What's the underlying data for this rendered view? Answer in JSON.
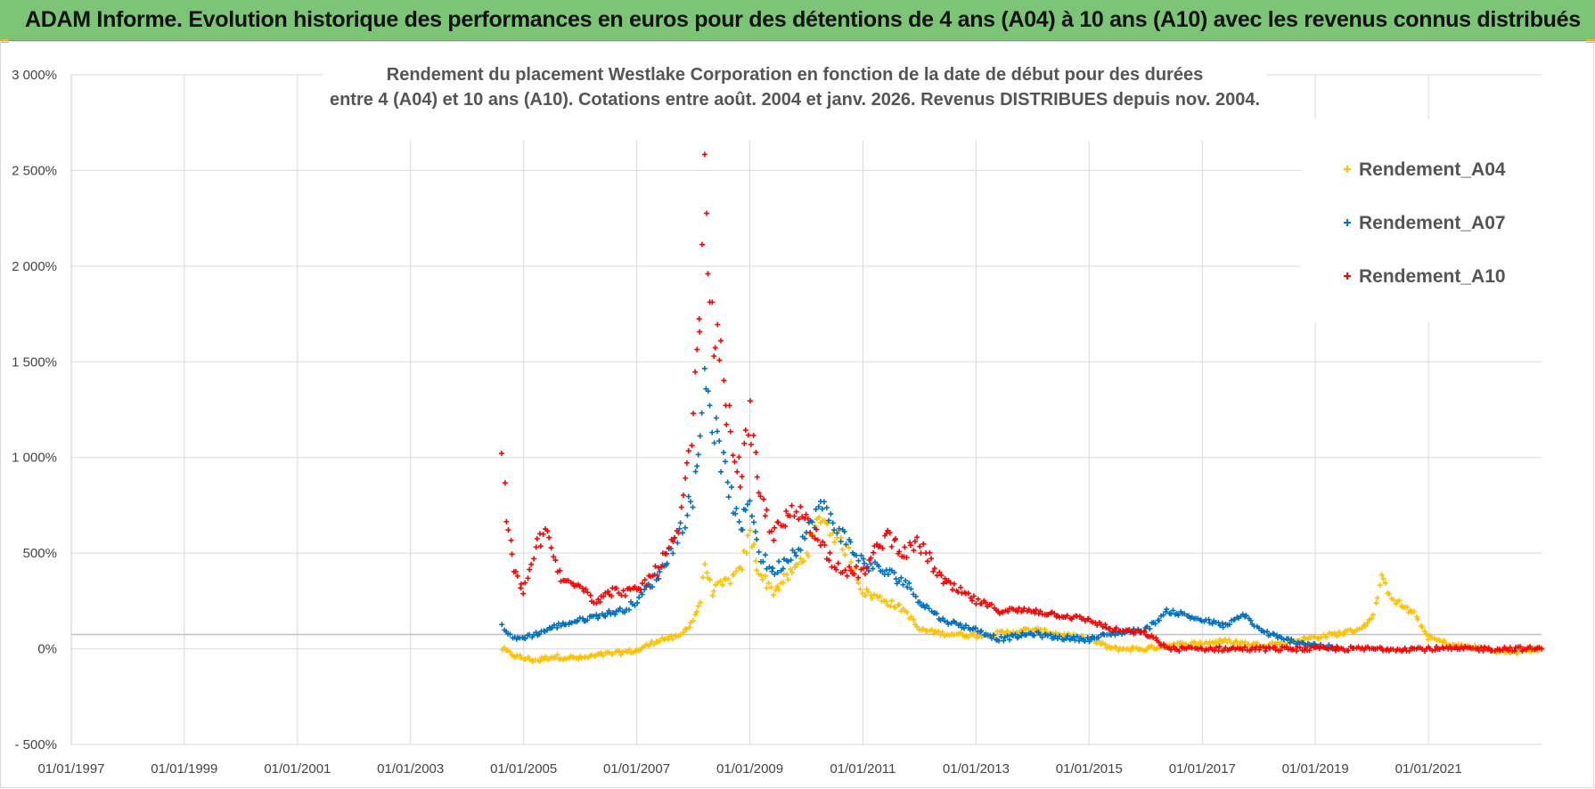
{
  "header": {
    "banner": "ADAM Informe. Evolution historique des performances en euros pour des détentions de 4 ans (A04) à 10 ans (A10) avec les revenus connus distribués"
  },
  "colors": {
    "banner_bg": "#7cc576",
    "A04": "#ffc000",
    "A07": "#0070c0",
    "A10": "#ff0000"
  },
  "chart_data": {
    "type": "scatter",
    "title": "Rendement du placement Westlake Corporation en fonction de la date de début pour des durées",
    "subtitle": "entre 4 (A04) et 10 ans (A10).  Cotations entre août. 2004 et janv. 2026. Revenus DISTRIBUES depuis nov. 2004.",
    "xlabel": "",
    "ylabel": "",
    "x_range": [
      "1997-01-01",
      "2023-01-01"
    ],
    "ylim": [
      -500,
      3000
    ],
    "y_ticks": [
      {
        "value": -500,
        "label": "- 500%"
      },
      {
        "value": 0,
        "label": "0%"
      },
      {
        "value": 500,
        "label": "500%"
      },
      {
        "value": 1000,
        "label": "1 000%"
      },
      {
        "value": 1500,
        "label": "1 500%"
      },
      {
        "value": 2000,
        "label": "2 000%"
      },
      {
        "value": 2500,
        "label": "2 500%"
      },
      {
        "value": 3000,
        "label": "3 000%"
      }
    ],
    "x_ticks": [
      {
        "value": "1997-01-01",
        "label": "01/01/1997"
      },
      {
        "value": "1999-01-01",
        "label": "01/01/1999"
      },
      {
        "value": "2001-01-01",
        "label": "01/01/2001"
      },
      {
        "value": "2003-01-01",
        "label": "01/01/2003"
      },
      {
        "value": "2005-01-01",
        "label": "01/01/2005"
      },
      {
        "value": "2007-01-01",
        "label": "01/01/2007"
      },
      {
        "value": "2009-01-01",
        "label": "01/01/2009"
      },
      {
        "value": "2011-01-01",
        "label": "01/01/2011"
      },
      {
        "value": "2013-01-01",
        "label": "01/01/2013"
      },
      {
        "value": "2015-01-01",
        "label": "01/01/2015"
      },
      {
        "value": "2017-01-01",
        "label": "01/01/2017"
      },
      {
        "value": "2019-01-01",
        "label": "01/01/2019"
      },
      {
        "value": "2021-01-01",
        "label": "01/01/2021"
      }
    ],
    "grid": true,
    "legend_position": "top-right",
    "series": [
      {
        "name": "Rendement_A04",
        "color": "#ffc000",
        "points": [
          [
            "2004-08-15",
            0
          ],
          [
            "2004-10-15",
            -30
          ],
          [
            "2005-01-01",
            -50
          ],
          [
            "2005-04-01",
            -60
          ],
          [
            "2005-07-01",
            -40
          ],
          [
            "2006-01-01",
            -50
          ],
          [
            "2006-06-01",
            -30
          ],
          [
            "2007-01-01",
            -10
          ],
          [
            "2007-06-01",
            50
          ],
          [
            "2007-10-01",
            60
          ],
          [
            "2008-01-01",
            150
          ],
          [
            "2008-02-15",
            250
          ],
          [
            "2008-03-15",
            450
          ],
          [
            "2008-05-01",
            300
          ],
          [
            "2008-08-01",
            350
          ],
          [
            "2008-11-01",
            400
          ],
          [
            "2009-01-01",
            600
          ],
          [
            "2009-03-01",
            400
          ],
          [
            "2009-06-01",
            300
          ],
          [
            "2009-10-01",
            400
          ],
          [
            "2010-01-01",
            500
          ],
          [
            "2010-04-01",
            700
          ],
          [
            "2010-07-01",
            600
          ],
          [
            "2010-10-01",
            500
          ],
          [
            "2011-01-01",
            300
          ],
          [
            "2011-06-01",
            250
          ],
          [
            "2011-10-01",
            200
          ],
          [
            "2012-01-01",
            100
          ],
          [
            "2012-06-01",
            80
          ],
          [
            "2013-01-01",
            70
          ],
          [
            "2013-06-01",
            80
          ],
          [
            "2014-01-01",
            100
          ],
          [
            "2014-06-01",
            80
          ],
          [
            "2015-01-01",
            50
          ],
          [
            "2015-06-01",
            0
          ],
          [
            "2016-01-01",
            0
          ],
          [
            "2016-06-01",
            20
          ],
          [
            "2017-01-01",
            30
          ],
          [
            "2017-06-01",
            40
          ],
          [
            "2018-01-01",
            20
          ],
          [
            "2018-06-01",
            30
          ],
          [
            "2019-01-01",
            60
          ],
          [
            "2019-06-01",
            80
          ],
          [
            "2019-10-01",
            100
          ],
          [
            "2020-01-01",
            150
          ],
          [
            "2020-03-01",
            360
          ],
          [
            "2020-06-01",
            250
          ],
          [
            "2020-10-01",
            180
          ],
          [
            "2021-01-01",
            60
          ],
          [
            "2021-06-01",
            20
          ],
          [
            "2022-01-01",
            0
          ],
          [
            "2022-06-01",
            -20
          ],
          [
            "2023-01-01",
            0
          ]
        ]
      },
      {
        "name": "Rendement_A07",
        "color": "#0070c0",
        "points": [
          [
            "2004-08-15",
            120
          ],
          [
            "2004-11-01",
            50
          ],
          [
            "2005-01-01",
            60
          ],
          [
            "2005-04-01",
            80
          ],
          [
            "2005-08-01",
            120
          ],
          [
            "2006-01-01",
            150
          ],
          [
            "2006-06-01",
            180
          ],
          [
            "2006-10-01",
            200
          ],
          [
            "2007-01-01",
            250
          ],
          [
            "2007-06-01",
            400
          ],
          [
            "2007-10-01",
            600
          ],
          [
            "2008-01-01",
            800
          ],
          [
            "2008-02-15",
            1100
          ],
          [
            "2008-03-15",
            1500
          ],
          [
            "2008-05-01",
            1200
          ],
          [
            "2008-07-01",
            1000
          ],
          [
            "2008-09-01",
            800
          ],
          [
            "2008-11-01",
            600
          ],
          [
            "2009-01-01",
            800
          ],
          [
            "2009-03-01",
            500
          ],
          [
            "2009-06-01",
            400
          ],
          [
            "2009-10-01",
            500
          ],
          [
            "2010-01-01",
            600
          ],
          [
            "2010-04-01",
            750
          ],
          [
            "2010-07-01",
            650
          ],
          [
            "2010-10-01",
            550
          ],
          [
            "2011-01-01",
            450
          ],
          [
            "2011-06-01",
            400
          ],
          [
            "2011-10-01",
            350
          ],
          [
            "2012-01-01",
            250
          ],
          [
            "2012-06-01",
            150
          ],
          [
            "2013-01-01",
            100
          ],
          [
            "2013-06-01",
            50
          ],
          [
            "2014-01-01",
            80
          ],
          [
            "2014-06-01",
            60
          ],
          [
            "2015-01-01",
            50
          ],
          [
            "2015-06-01",
            80
          ],
          [
            "2016-01-01",
            100
          ],
          [
            "2016-06-01",
            200
          ],
          [
            "2017-01-01",
            150
          ],
          [
            "2017-06-01",
            120
          ],
          [
            "2017-10-01",
            180
          ],
          [
            "2018-01-01",
            100
          ],
          [
            "2018-06-01",
            50
          ],
          [
            "2019-01-01",
            20
          ],
          [
            "2019-06-01",
            0
          ]
        ]
      },
      {
        "name": "Rendement_A10",
        "color": "#ff0000",
        "points": [
          [
            "2004-08-15",
            1000
          ],
          [
            "2004-09-15",
            700
          ],
          [
            "2004-11-01",
            400
          ],
          [
            "2005-01-01",
            300
          ],
          [
            "2005-04-01",
            550
          ],
          [
            "2005-06-01",
            600
          ],
          [
            "2005-09-01",
            350
          ],
          [
            "2006-01-01",
            350
          ],
          [
            "2006-04-01",
            250
          ],
          [
            "2006-08-01",
            300
          ],
          [
            "2007-01-01",
            300
          ],
          [
            "2007-05-01",
            400
          ],
          [
            "2007-10-01",
            600
          ],
          [
            "2008-01-01",
            1200
          ],
          [
            "2008-02-15",
            1800
          ],
          [
            "2008-03-15",
            2400
          ],
          [
            "2008-05-01",
            1700
          ],
          [
            "2008-07-01",
            1500
          ],
          [
            "2008-09-01",
            1100
          ],
          [
            "2008-11-01",
            900
          ],
          [
            "2009-01-01",
            1200
          ],
          [
            "2009-03-01",
            800
          ],
          [
            "2009-06-01",
            600
          ],
          [
            "2009-10-01",
            700
          ],
          [
            "2010-01-01",
            700
          ],
          [
            "2010-04-01",
            550
          ],
          [
            "2010-07-01",
            450
          ],
          [
            "2010-10-01",
            400
          ],
          [
            "2011-01-01",
            400
          ],
          [
            "2011-06-01",
            600
          ],
          [
            "2011-10-01",
            500
          ],
          [
            "2012-01-01",
            550
          ],
          [
            "2012-06-01",
            350
          ],
          [
            "2013-01-01",
            250
          ],
          [
            "2013-06-01",
            200
          ],
          [
            "2014-01-01",
            200
          ],
          [
            "2014-06-01",
            180
          ],
          [
            "2015-01-01",
            150
          ],
          [
            "2015-06-01",
            100
          ],
          [
            "2016-01-01",
            80
          ],
          [
            "2016-06-01",
            0
          ],
          [
            "2017-01-01",
            0
          ],
          [
            "2018-01-01",
            0
          ],
          [
            "2019-01-01",
            0
          ],
          [
            "2020-01-01",
            0
          ],
          [
            "2021-01-01",
            0
          ],
          [
            "2022-01-01",
            0
          ],
          [
            "2023-01-01",
            0
          ]
        ]
      }
    ]
  }
}
